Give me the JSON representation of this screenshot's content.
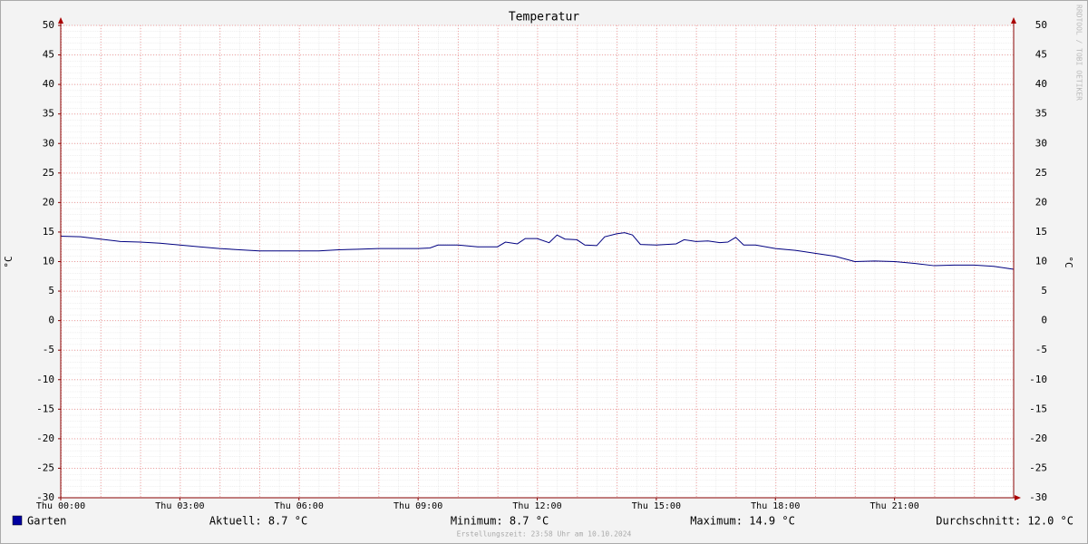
{
  "chart_data": {
    "type": "line",
    "title": "Temperatur",
    "y_label": "°C",
    "y2_label": "°C",
    "watermark": "RRDTOOL / TOBI OETIKER",
    "x": [
      0,
      0.5,
      1,
      1.5,
      2,
      2.5,
      3,
      3.5,
      4,
      4.5,
      5,
      5.5,
      6,
      6.5,
      7,
      7.5,
      8,
      8.5,
      9,
      9.3,
      9.5,
      10,
      10.5,
      11,
      11.2,
      11.5,
      11.7,
      12,
      12.3,
      12.5,
      12.7,
      13,
      13.2,
      13.5,
      13.7,
      14,
      14.2,
      14.4,
      14.6,
      15,
      15.5,
      15.7,
      16,
      16.3,
      16.6,
      16.8,
      17,
      17.2,
      17.5,
      18,
      18.5,
      19,
      19.5,
      20,
      20.5,
      21,
      21.5,
      22,
      22.5,
      23,
      23.5,
      24
    ],
    "series": [
      {
        "name": "Garten",
        "color": "#000080",
        "legend_color": "#0000a0",
        "values": [
          14.3,
          14.2,
          13.8,
          13.4,
          13.3,
          13.1,
          12.8,
          12.5,
          12.2,
          12.0,
          11.8,
          11.8,
          11.8,
          11.8,
          12.0,
          12.1,
          12.2,
          12.2,
          12.2,
          12.3,
          12.8,
          12.8,
          12.5,
          12.5,
          13.3,
          13.0,
          13.9,
          13.9,
          13.2,
          14.5,
          13.8,
          13.7,
          12.8,
          12.7,
          14.2,
          14.7,
          14.9,
          14.5,
          12.9,
          12.8,
          13.0,
          13.7,
          13.4,
          13.5,
          13.2,
          13.3,
          14.1,
          12.8,
          12.8,
          12.2,
          11.9,
          11.4,
          10.9,
          10.0,
          10.1,
          10.0,
          9.7,
          9.3,
          9.4,
          9.4,
          9.2,
          8.7
        ]
      }
    ],
    "xlim": [
      0,
      24
    ],
    "xticks": [
      {
        "value": 0,
        "label": "Thu 00:00"
      },
      {
        "value": 3,
        "label": "Thu 03:00"
      },
      {
        "value": 6,
        "label": "Thu 06:00"
      },
      {
        "value": 9,
        "label": "Thu 09:00"
      },
      {
        "value": 12,
        "label": "Thu 12:00"
      },
      {
        "value": 15,
        "label": "Thu 15:00"
      },
      {
        "value": 18,
        "label": "Thu 18:00"
      },
      {
        "value": 21,
        "label": "Thu 21:00"
      }
    ],
    "ylim": [
      -30,
      50
    ],
    "yticks": [
      -30,
      -25,
      -20,
      -15,
      -10,
      -5,
      0,
      5,
      10,
      15,
      20,
      25,
      30,
      35,
      40,
      45,
      50
    ],
    "grid": true,
    "stats": [
      "Aktuell: 8.7 °C",
      "Minimum: 8.7 °C",
      "Maximum: 14.9 °C",
      "Durchschnitt: 12.0 °C"
    ],
    "footer": "Erstellungszeit: 23:58 Uhr am 10.10.2024"
  }
}
